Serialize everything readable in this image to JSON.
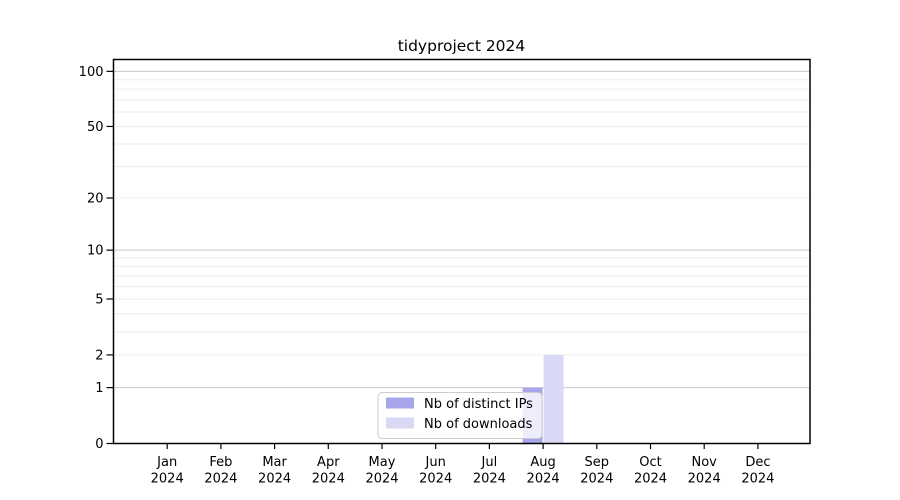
{
  "chart_data": {
    "type": "bar",
    "title": "tidyproject 2024",
    "xlabel": "",
    "ylabel": "",
    "categories": [
      "Jan 2024",
      "Feb 2024",
      "Mar 2024",
      "Apr 2024",
      "May 2024",
      "Jun 2024",
      "Jul 2024",
      "Aug 2024",
      "Sep 2024",
      "Oct 2024",
      "Nov 2024",
      "Dec 2024"
    ],
    "series": [
      {
        "name": "Nb of distinct IPs",
        "color": "#a6a6e9",
        "values": [
          0,
          0,
          0,
          0,
          0,
          0,
          0,
          1,
          0,
          0,
          0,
          0
        ]
      },
      {
        "name": "Nb of downloads",
        "color": "#d9d9f6",
        "values": [
          0,
          0,
          0,
          0,
          0,
          0,
          0,
          2,
          0,
          0,
          0,
          0
        ]
      }
    ],
    "yscale": "log1p",
    "ylim": [
      0,
      116
    ],
    "y_ticks": [
      0,
      1,
      2,
      5,
      10,
      20,
      50,
      100
    ],
    "y_major_gridlines": [
      1,
      10,
      100
    ],
    "y_minor_gridlines": [
      2,
      3,
      4,
      5,
      6,
      7,
      8,
      9,
      20,
      30,
      40,
      50,
      60,
      70,
      80,
      90
    ],
    "grid": true,
    "legend_position": "lower center",
    "colors": {
      "spine": "#000000",
      "major_grid": "#c9c9c9",
      "minor_grid": "#ededed",
      "legend_border": "#cccccc",
      "legend_background": "rgba(255,255,255,0.8)",
      "tick": "#000000",
      "text": "#000000"
    }
  }
}
